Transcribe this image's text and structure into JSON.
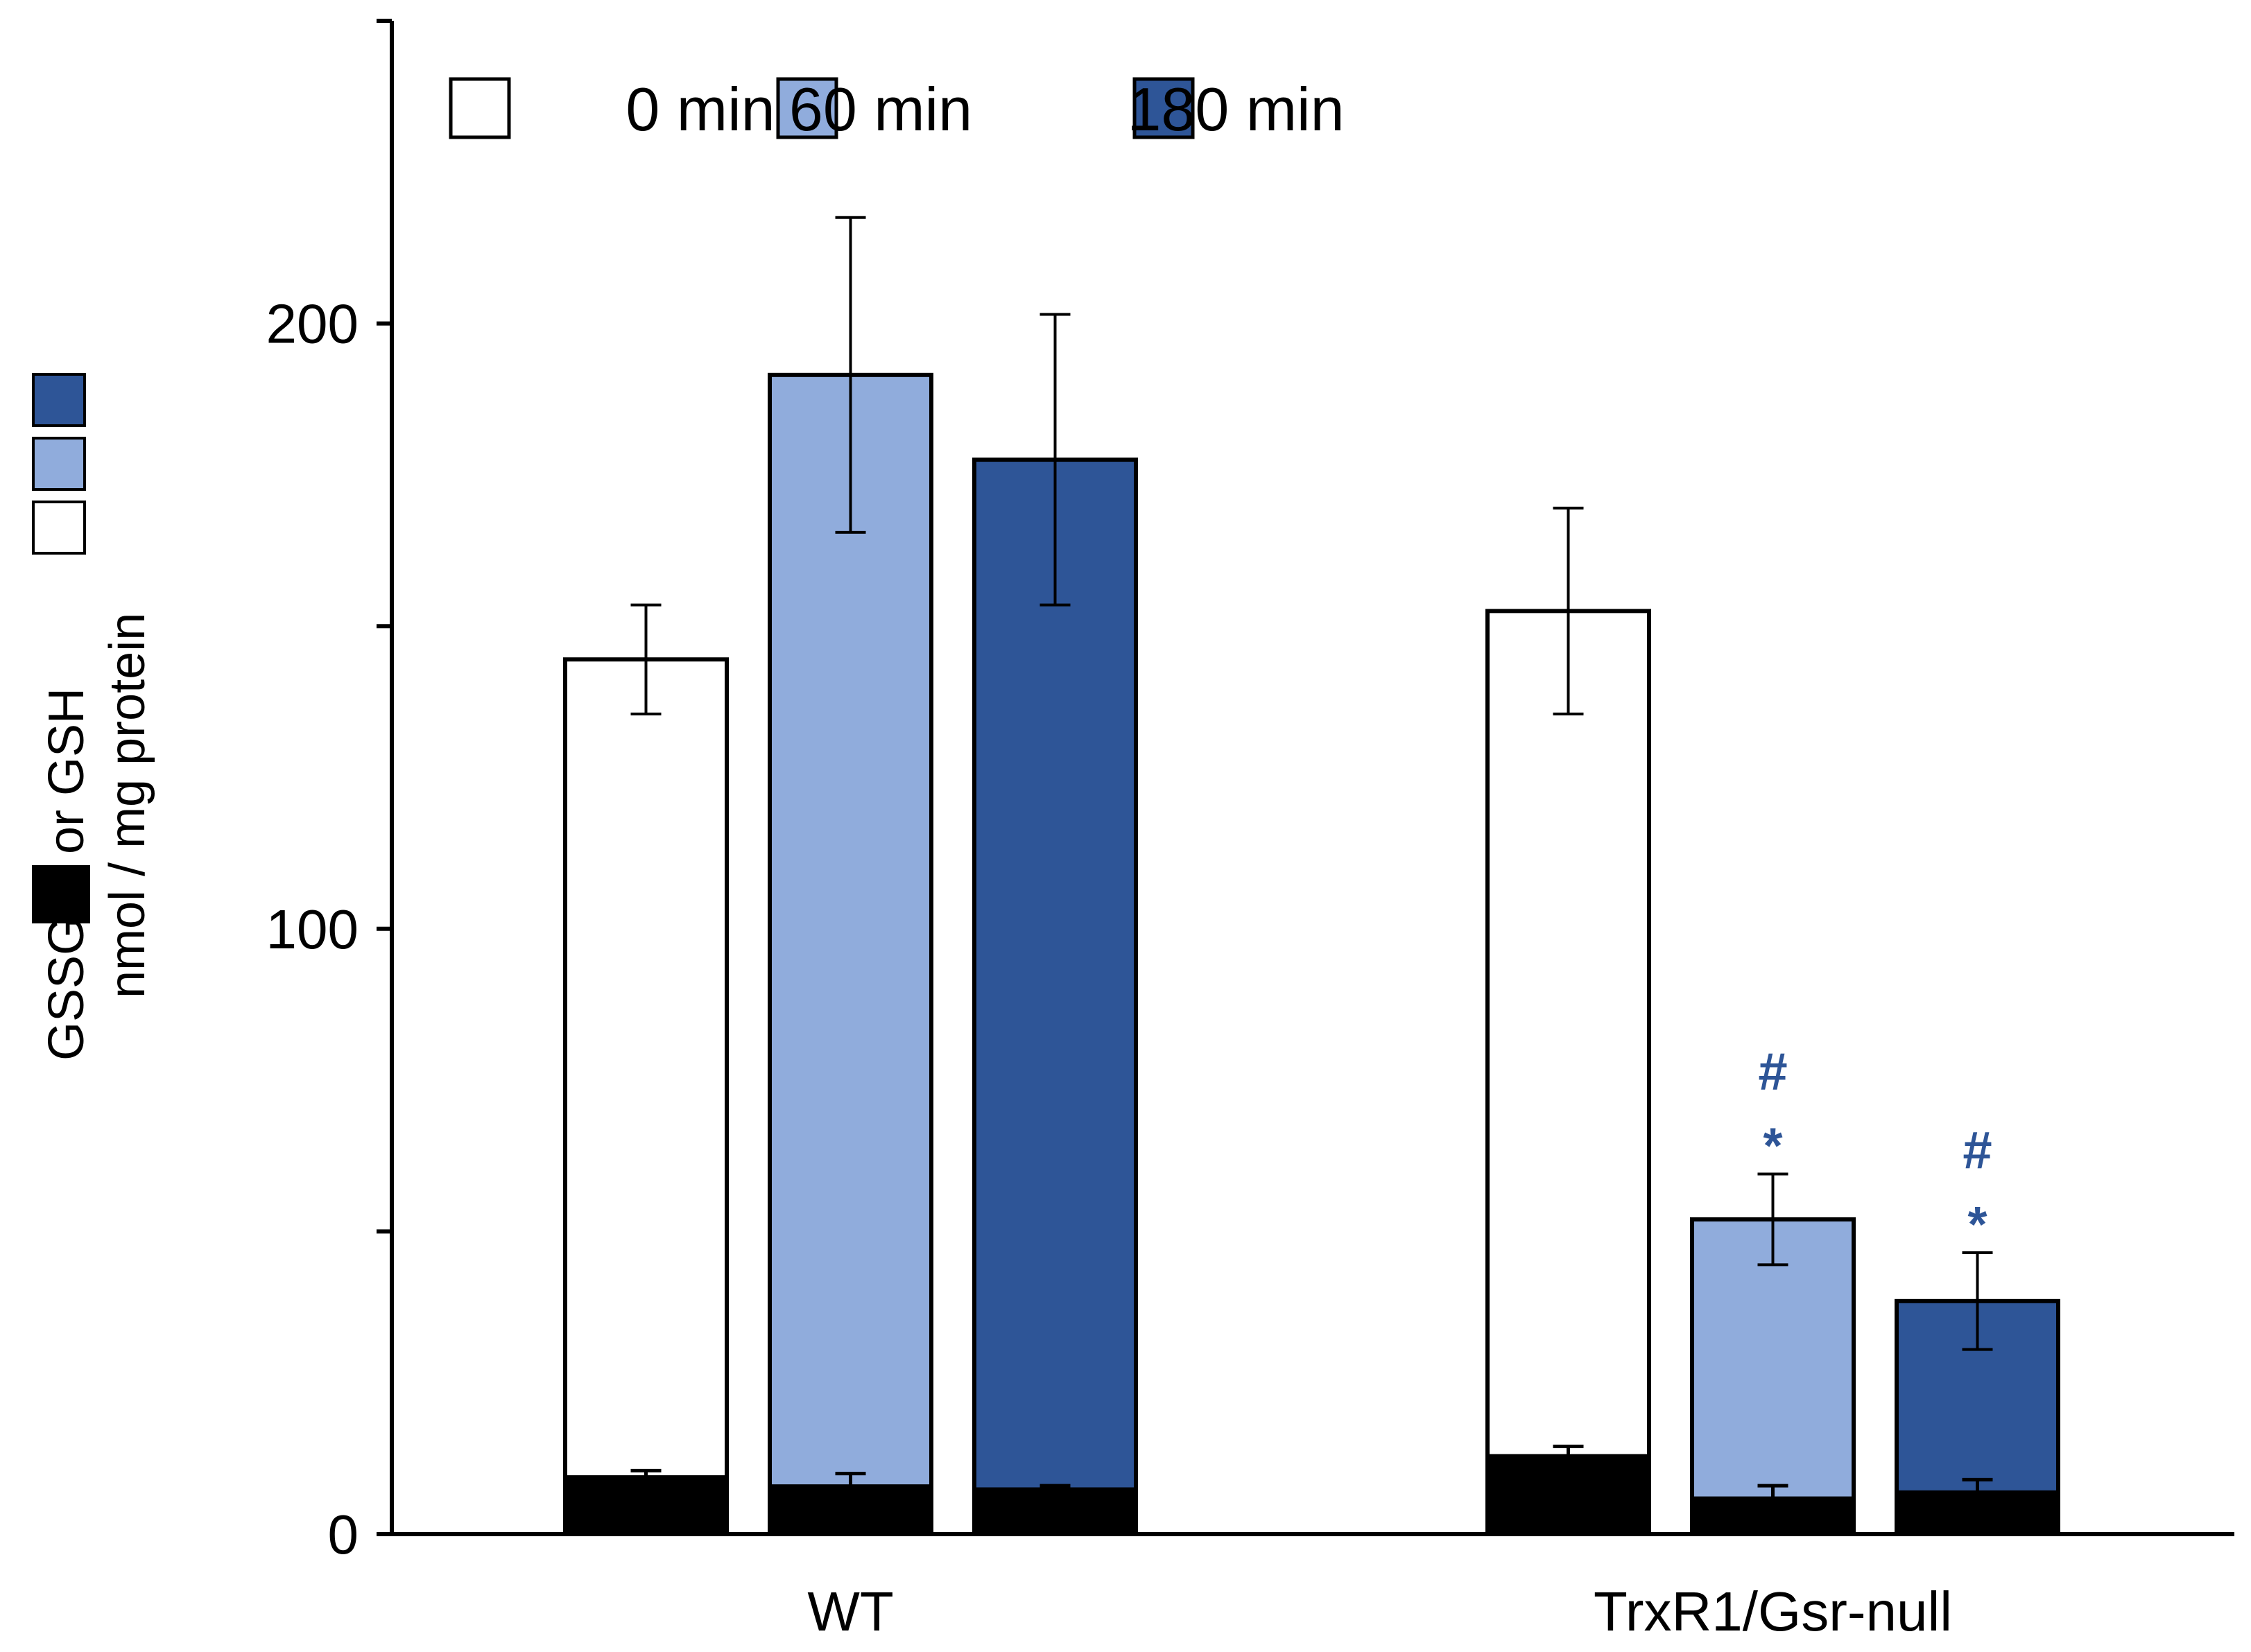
{
  "chart_data": {
    "type": "bar",
    "stacked_overlay": true,
    "categories": [
      "WT",
      "TrxR1/Gsr-null"
    ],
    "ylim": [
      0,
      250
    ],
    "yticks": [
      0,
      50,
      100,
      150,
      200,
      250
    ],
    "ytick_labels": {
      "0": "0",
      "100": "100",
      "200": "200"
    },
    "ylabel_line1_parts": [
      "GSSG",
      "or GSH"
    ],
    "ylabel_line2": "nmol / mg protein",
    "xlabel": "",
    "legend_position": "top-left",
    "series": [
      {
        "name": "0 min",
        "color": "#ffffff",
        "gsh": [
          144.5,
          152.5
        ],
        "gsh_err": [
          9,
          17
        ],
        "gssg": [
          9.5,
          13
        ],
        "gssg_err": [
          1,
          1.5
        ],
        "annotations": [
          "",
          ""
        ]
      },
      {
        "name": "60 min",
        "color": "#90acdc",
        "gsh": [
          191.5,
          52
        ],
        "gsh_err": [
          26,
          7.5
        ],
        "gssg": [
          8,
          6
        ],
        "gssg_err": [
          2,
          2
        ],
        "annotations": [
          "",
          "#*"
        ]
      },
      {
        "name": "180 min",
        "color": "#2e5597",
        "gsh": [
          177.5,
          38.5
        ],
        "gsh_err": [
          24,
          8
        ],
        "gssg": [
          7.5,
          7
        ],
        "gssg_err": [
          0.5,
          2
        ],
        "annotations": [
          "",
          "#*"
        ]
      }
    ],
    "gssg_color": "#000000",
    "annotation_color": "#2e5597",
    "annotation_symbols": {
      "hash": "#",
      "star": "*"
    }
  }
}
